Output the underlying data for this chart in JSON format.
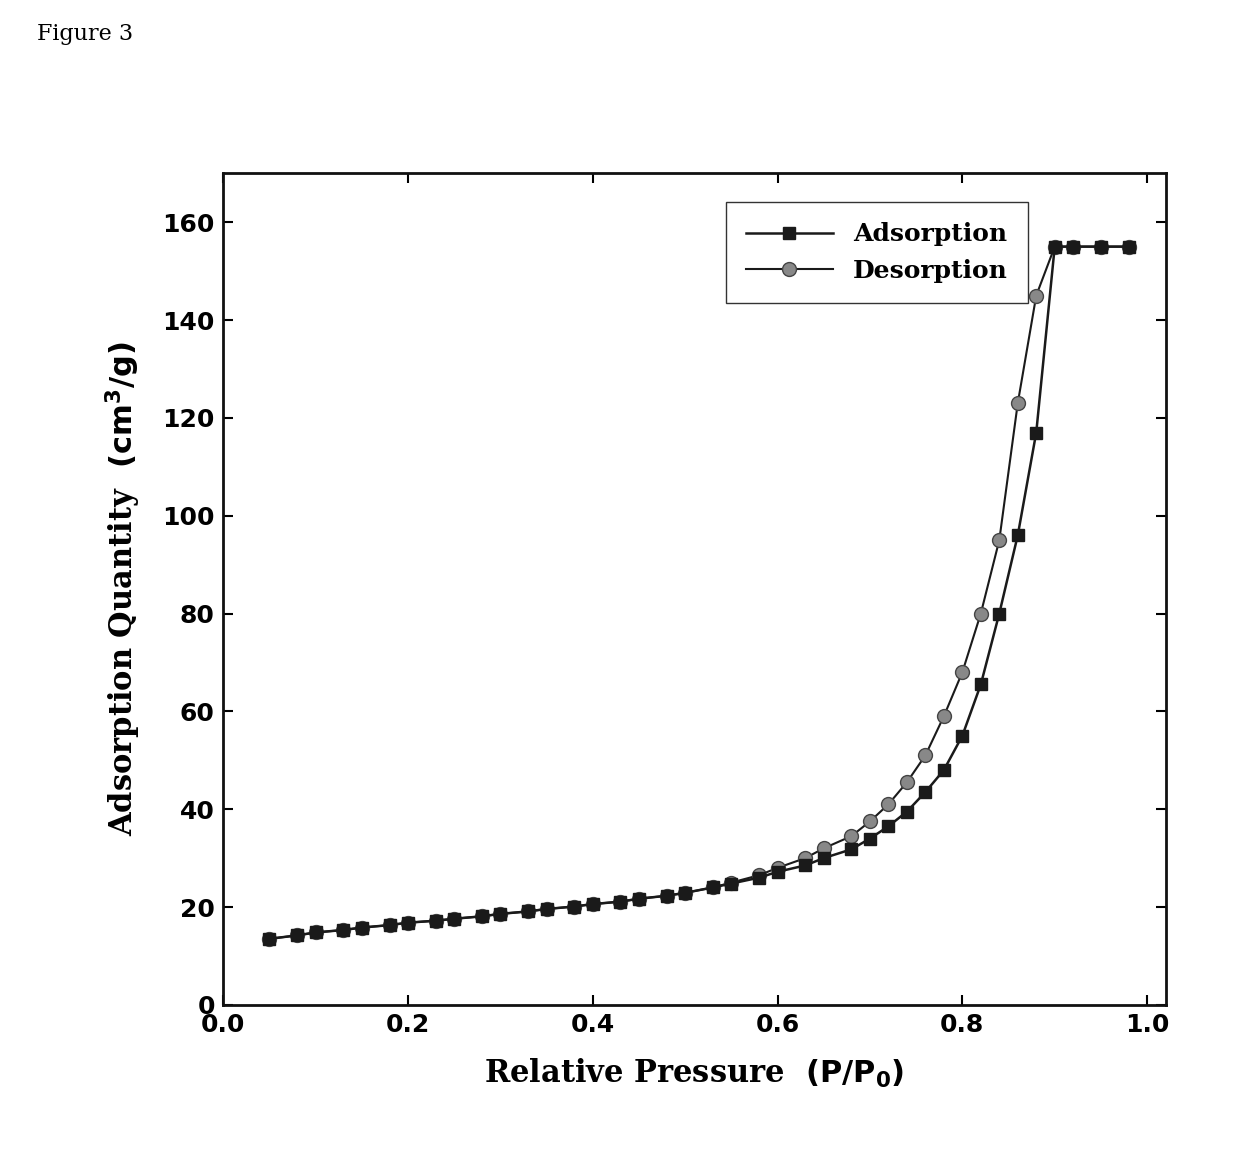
{
  "adsorption_x": [
    0.05,
    0.08,
    0.1,
    0.13,
    0.15,
    0.18,
    0.2,
    0.23,
    0.25,
    0.28,
    0.3,
    0.33,
    0.35,
    0.38,
    0.4,
    0.43,
    0.45,
    0.48,
    0.5,
    0.53,
    0.55,
    0.58,
    0.6,
    0.63,
    0.65,
    0.68,
    0.7,
    0.72,
    0.74,
    0.76,
    0.78,
    0.8,
    0.82,
    0.84,
    0.86,
    0.88,
    0.9,
    0.92,
    0.95,
    0.98
  ],
  "adsorption_y": [
    13.5,
    14.2,
    14.8,
    15.3,
    15.8,
    16.3,
    16.8,
    17.2,
    17.6,
    18.1,
    18.6,
    19.1,
    19.6,
    20.1,
    20.6,
    21.1,
    21.7,
    22.3,
    22.9,
    24.0,
    24.8,
    26.0,
    27.2,
    28.5,
    30.0,
    31.8,
    34.0,
    36.5,
    39.5,
    43.5,
    48.0,
    55.0,
    65.5,
    80.0,
    96.0,
    117.0,
    155.0,
    155.0,
    155.0,
    155.0
  ],
  "desorption_x": [
    0.05,
    0.08,
    0.1,
    0.13,
    0.15,
    0.18,
    0.2,
    0.23,
    0.25,
    0.28,
    0.3,
    0.33,
    0.35,
    0.38,
    0.4,
    0.43,
    0.45,
    0.48,
    0.5,
    0.53,
    0.55,
    0.58,
    0.6,
    0.63,
    0.65,
    0.68,
    0.7,
    0.72,
    0.74,
    0.76,
    0.78,
    0.8,
    0.82,
    0.84,
    0.86,
    0.88,
    0.9,
    0.92,
    0.95,
    0.98
  ],
  "desorption_y": [
    13.5,
    14.2,
    14.8,
    15.3,
    15.8,
    16.3,
    16.8,
    17.2,
    17.6,
    18.1,
    18.6,
    19.1,
    19.6,
    20.1,
    20.6,
    21.1,
    21.7,
    22.3,
    22.9,
    24.0,
    25.0,
    26.5,
    28.0,
    30.0,
    32.0,
    34.5,
    37.5,
    41.0,
    45.5,
    51.0,
    59.0,
    68.0,
    80.0,
    95.0,
    123.0,
    145.0,
    155.0,
    155.0,
    155.0,
    155.0
  ],
  "xlabel": "Relative Pressure  $\\mathbf{(P/P_0)}$",
  "ylabel": "Adsorption Quantity  $\\mathbf{(cm^3/g)}$",
  "title": "Figure 3",
  "xlim": [
    0.0,
    1.02
  ],
  "ylim": [
    0,
    170
  ],
  "xticks": [
    0.0,
    0.2,
    0.4,
    0.6,
    0.8,
    1.0
  ],
  "yticks": [
    0,
    20,
    40,
    60,
    80,
    100,
    120,
    140,
    160
  ],
  "line_color": "#1a1a1a",
  "desorption_marker_color": "#888888",
  "background_color": "#ffffff",
  "legend_adsorption": "Adsorption",
  "legend_desorption": "Desorption"
}
